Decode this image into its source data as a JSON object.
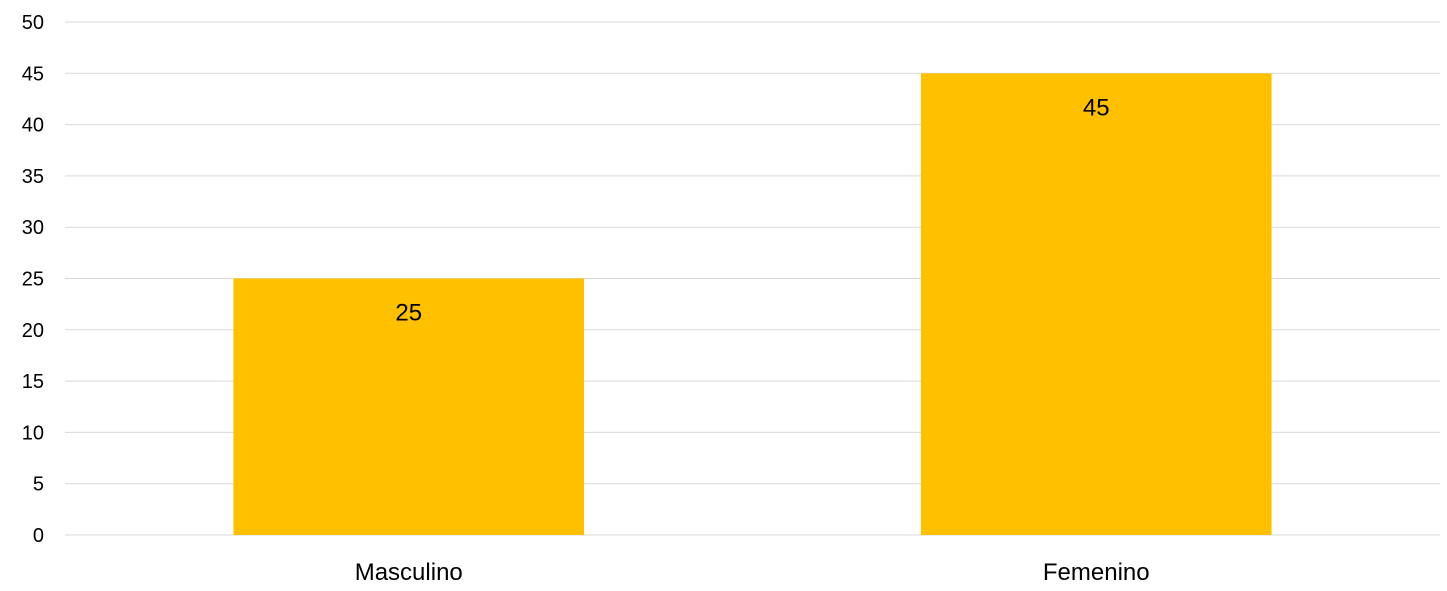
{
  "chart_data": {
    "type": "bar",
    "categories": [
      "Masculino",
      "Femenino"
    ],
    "values": [
      25,
      45
    ],
    "ylim": [
      0,
      50
    ],
    "yticks": [
      0,
      5,
      10,
      15,
      20,
      25,
      30,
      35,
      40,
      45,
      50
    ],
    "grid": true,
    "data_labels": true,
    "legend": "none",
    "colors": {
      "bar": "#FFC000",
      "grid": "#D9D9D9",
      "text": "#000000"
    }
  }
}
